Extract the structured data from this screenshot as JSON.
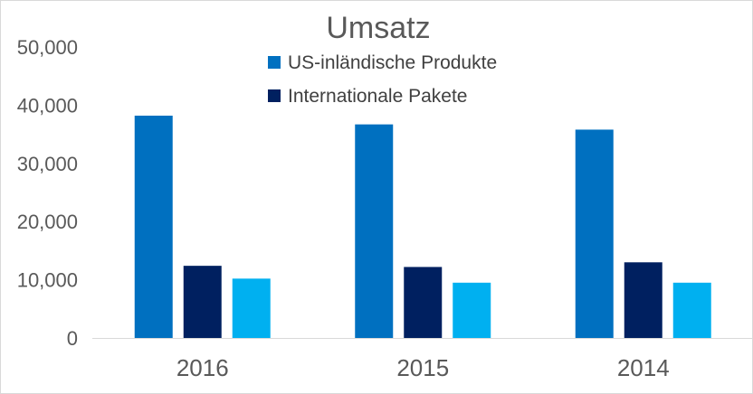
{
  "chart_data": {
    "type": "bar",
    "title": "Umsatz",
    "categories": [
      "2016",
      "2015",
      "2014"
    ],
    "y_ticks": [
      "0",
      "10,000",
      "20,000",
      "30,000",
      "40,000",
      "50,000"
    ],
    "ylim": [
      0,
      50000
    ],
    "grid": false,
    "legend_position": "top",
    "series": [
      {
        "name": "US-inländische Produkte",
        "color": "#0070C0",
        "values": [
          38200,
          36700,
          35800
        ]
      },
      {
        "name": "Internationale Pakete",
        "color": "#002060",
        "values": [
          12400,
          12200,
          13000
        ]
      },
      {
        "color": "#00B0F0",
        "values": [
          10200,
          9500,
          9500
        ]
      }
    ]
  }
}
